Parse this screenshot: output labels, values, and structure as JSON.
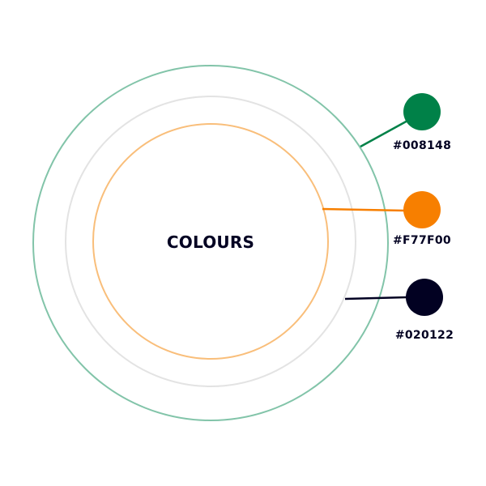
{
  "title": "COLOURS",
  "text_color": "#020122",
  "rings": [
    {
      "name": "outer",
      "color": "#82C4A9"
    },
    {
      "name": "middle",
      "color": "#E3E3E3"
    },
    {
      "name": "inner",
      "color": "#F9BE7A"
    }
  ],
  "swatches": [
    {
      "hex": "#008148",
      "color": "#008148",
      "ring": "outer"
    },
    {
      "hex": "#F77F00",
      "color": "#F77F00",
      "ring": "inner"
    },
    {
      "hex": "#020122",
      "color": "#020122",
      "ring": "middle"
    }
  ]
}
